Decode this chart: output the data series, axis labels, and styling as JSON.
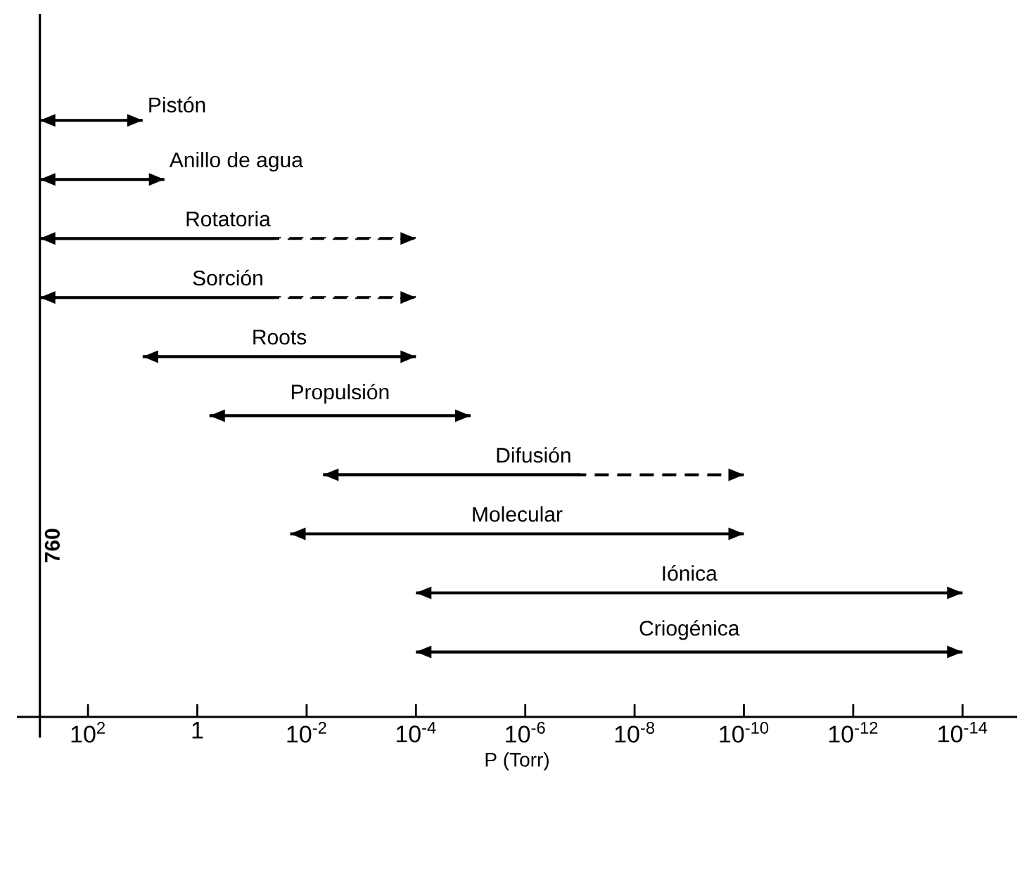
{
  "chart_data": {
    "type": "bar",
    "orientation": "horizontal",
    "log": "x",
    "categories": [
      "Pistón",
      "Anillo de agua",
      "Rotatoria",
      "Sorción",
      "Roots",
      "Propulsión",
      "Difusión",
      "Molecular",
      "Iónica",
      "Criogénica"
    ],
    "series": [
      {
        "color": "#000000",
        "line_style": "dashed",
        "base": [
          null,
          null,
          0.0001,
          0.0001,
          null,
          null,
          1e-10,
          null,
          null,
          null
        ],
        "values": [
          null,
          null,
          0.0399,
          0.0399,
          null,
          null,
          9.99e-08,
          null,
          null,
          null
        ]
      },
      {
        "color": "#000000",
        "line_style": "solid",
        "base": [
          10,
          4,
          0.04,
          0.04,
          0.0001,
          1e-05,
          1e-07,
          1e-10,
          1e-14,
          1e-14
        ],
        "values": [
          750,
          756,
          759.96,
          759.96,
          9.9999,
          0.59999,
          0.0049999,
          0.0199999999,
          9.99999999999e-05,
          9.99999999999e-05
        ]
      }
    ],
    "xlim": [
      2000,
      1e-15
    ],
    "xticks": [
      {
        "value": 100,
        "label": "10$^{2}$"
      },
      {
        "value": 1,
        "label": "1"
      },
      {
        "value": 0.01,
        "label": "10$^{-2}$"
      },
      {
        "value": 0.0001,
        "label": "10$^{-4}$"
      },
      {
        "value": 1e-06,
        "label": "10$^{-6}$"
      },
      {
        "value": 1e-08,
        "label": "10$^{-8}$"
      },
      {
        "value": 1e-10,
        "label": "10$^{-10}$"
      },
      {
        "value": 1e-12,
        "label": "10$^{-12}$"
      },
      {
        "value": 1e-14,
        "label": "10$^{-14}$"
      }
    ],
    "xlabel": "P (Torr)",
    "ref_lines": [
      {
        "axis": "x",
        "value": 760,
        "label": "760"
      }
    ]
  }
}
